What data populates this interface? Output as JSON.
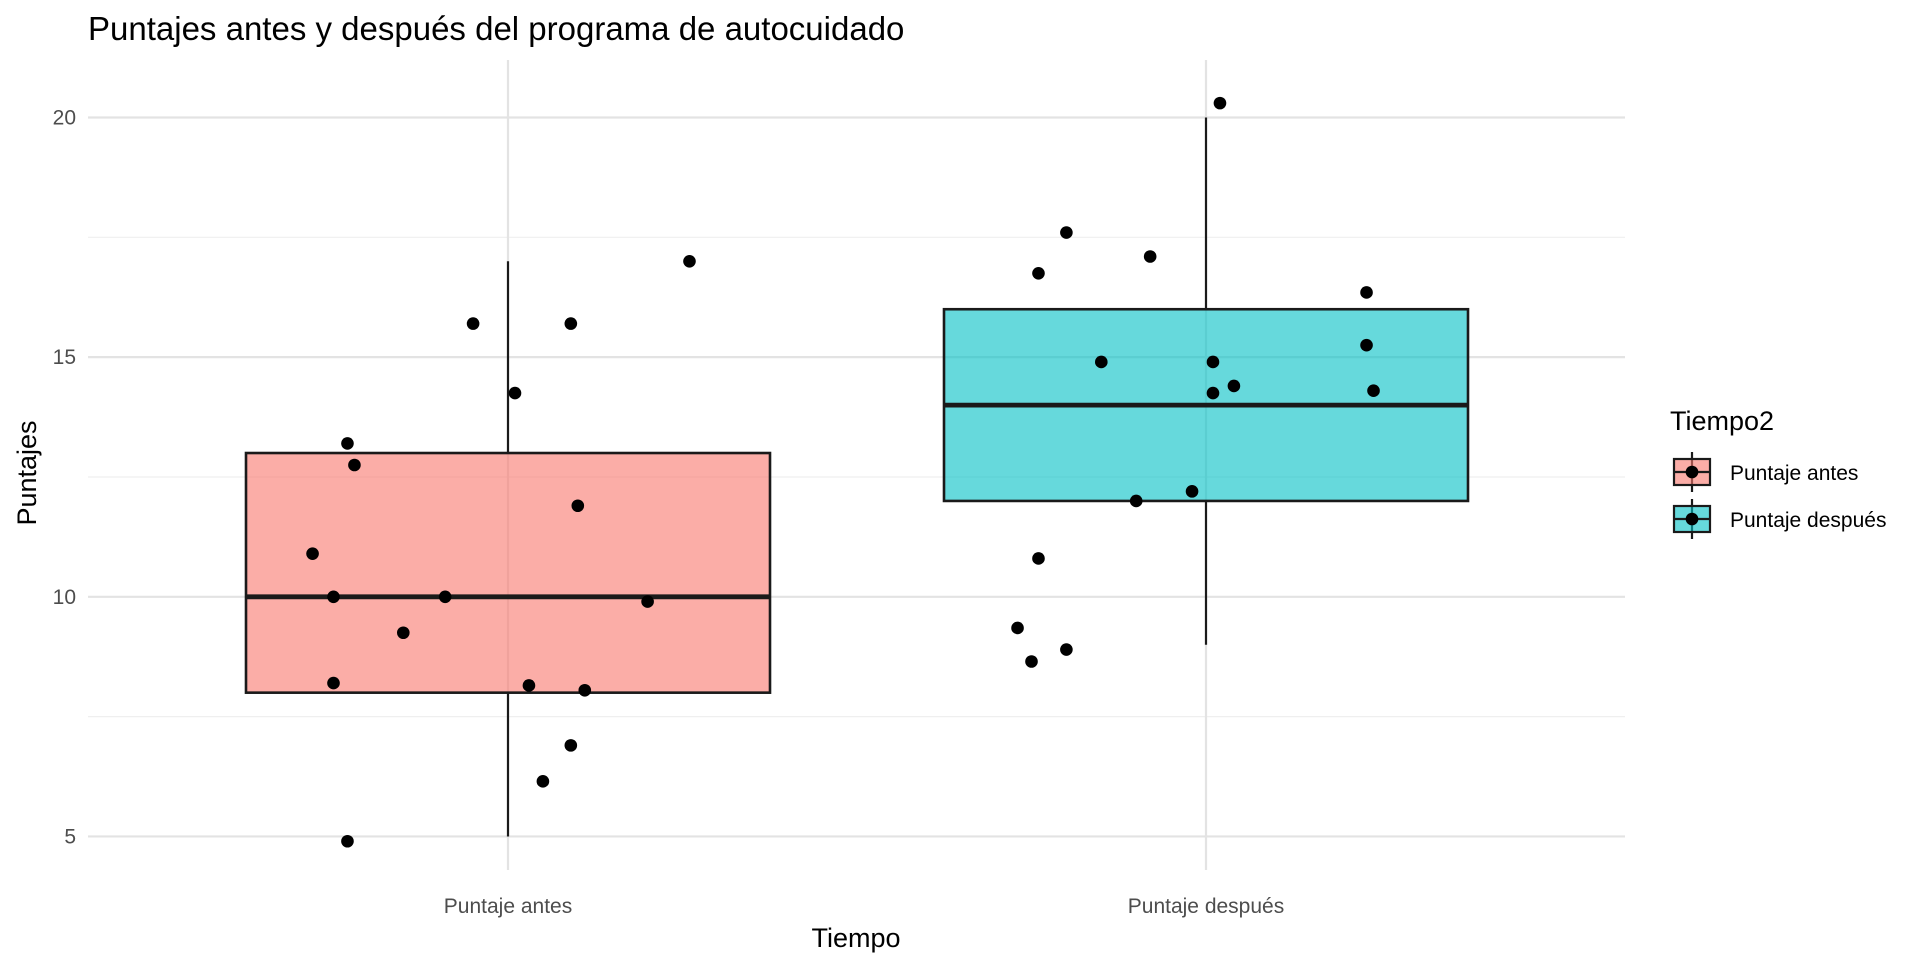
{
  "chart_data": {
    "type": "boxplot",
    "title": "Puntajes antes y después del programa de autocuidado",
    "xlabel": "Tiempo",
    "ylabel": "Puntajes",
    "categories": [
      "Puntaje antes",
      "Puntaje después"
    ],
    "ylim": [
      4.3,
      21.2
    ],
    "y_ticks": [
      5,
      10,
      15,
      20
    ],
    "y_tick_labels": [
      "5",
      "10",
      "15",
      "20"
    ],
    "y_minor_ticks": [
      7.5,
      12.5,
      17.5
    ],
    "grid": true,
    "legend": {
      "title": "Tiempo2",
      "position": "right",
      "entries": [
        "Puntaje antes",
        "Puntaje después"
      ]
    },
    "colors": [
      "#F8766D",
      "#00BFC4"
    ],
    "fill_opacity": 0.6,
    "boxes": [
      {
        "name": "Puntaje antes",
        "whisker_low": 5,
        "q1": 8,
        "median": 10,
        "q3": 13,
        "whisker_high": 17
      },
      {
        "name": "Puntaje después",
        "whisker_low": 9,
        "q1": 12,
        "median": 14,
        "q3": 16,
        "whisker_high": 20
      }
    ],
    "points": [
      {
        "name": "Puntaje antes",
        "x_offset": [
          0.26,
          -0.05,
          0.09,
          -0.23,
          0.01,
          -0.22,
          -0.28,
          0.1,
          -0.25,
          -0.09,
          0.2,
          -0.15,
          -0.25,
          0.03,
          0.11,
          0.09,
          0.05,
          -0.23
        ],
        "y": [
          17.0,
          15.7,
          15.7,
          13.2,
          14.25,
          12.75,
          10.9,
          11.9,
          10.0,
          10.0,
          9.9,
          9.25,
          8.2,
          8.15,
          8.05,
          6.9,
          6.15,
          4.9
        ]
      },
      {
        "name": "Puntaje después",
        "x_offset": [
          0.02,
          -0.2,
          -0.24,
          -0.08,
          0.23,
          -0.15,
          0.01,
          0.23,
          0.04,
          0.24,
          0.01,
          -0.1,
          -0.02,
          -0.24,
          -0.27,
          -0.2,
          -0.25
        ],
        "y": [
          20.3,
          17.6,
          16.75,
          17.1,
          16.35,
          14.9,
          14.9,
          15.25,
          14.4,
          14.3,
          14.25,
          12.0,
          12.2,
          10.8,
          9.35,
          8.9,
          8.65
        ]
      }
    ]
  }
}
